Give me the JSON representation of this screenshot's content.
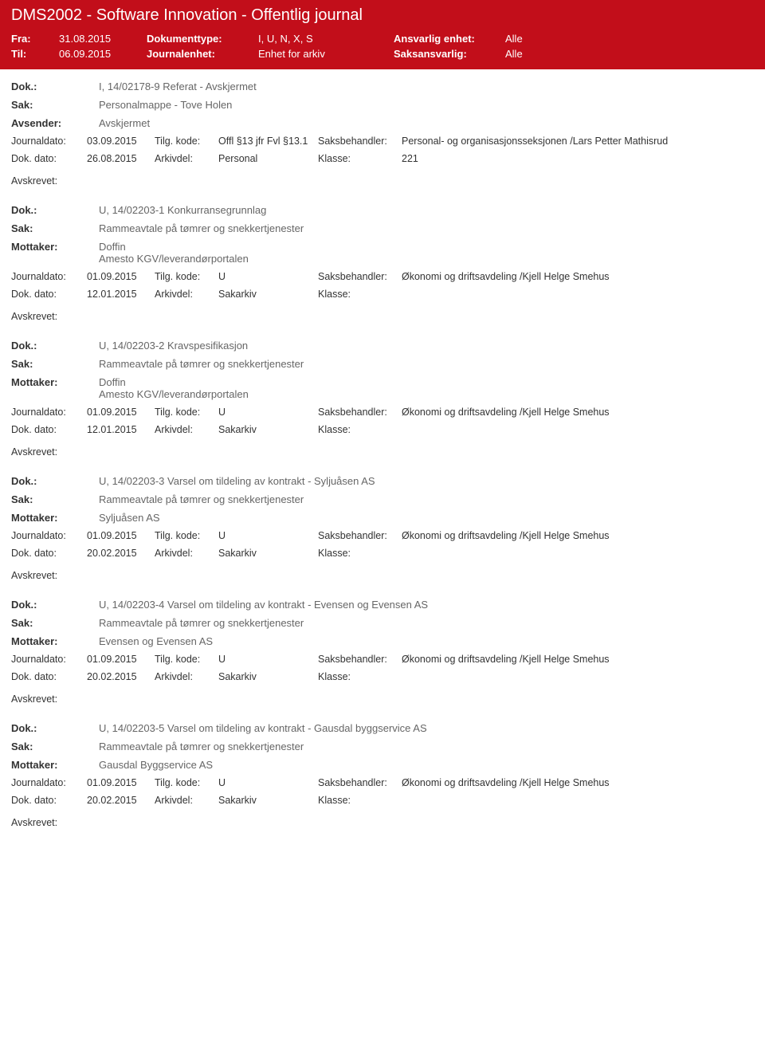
{
  "header": {
    "title": "DMS2002 - Software Innovation - Offentlig journal",
    "fra_label": "Fra:",
    "fra_value": "31.08.2015",
    "til_label": "Til:",
    "til_value": "06.09.2015",
    "doktype_label": "Dokumenttype:",
    "doktype_value": "I, U, N, X, S",
    "journalenhet_label": "Journalenhet:",
    "journalenhet_value": "Enhet for arkiv",
    "ansvarlig_label": "Ansvarlig enhet:",
    "ansvarlig_value": "Alle",
    "saksansvarlig_label": "Saksansvarlig:",
    "saksansvarlig_value": "Alle"
  },
  "labels": {
    "dok": "Dok.:",
    "sak": "Sak:",
    "avsender": "Avsender:",
    "mottaker": "Mottaker:",
    "journaldato": "Journaldato:",
    "tilgkode": "Tilg. kode:",
    "saksbehandler": "Saksbehandler:",
    "dokdato": "Dok. dato:",
    "arkivdel": "Arkivdel:",
    "klasse": "Klasse:",
    "avskrevet": "Avskrevet:"
  },
  "entries": [
    {
      "dok": "I, 14/02178-9 Referat - Avskjermet",
      "sak": "Personalmappe - Tove Holen",
      "party_label": "Avsender:",
      "party_values": [
        "Avskjermet"
      ],
      "journaldato": "03.09.2015",
      "tilgkode": "Offl §13 jfr Fvl §13.1",
      "saksbehandler": "Personal- og organisasjonsseksjonen /Lars Petter Mathisrud",
      "dokdato": "26.08.2015",
      "arkivdel": "Personal",
      "klasse": "221"
    },
    {
      "dok": "U, 14/02203-1 Konkurransegrunnlag",
      "sak": "Rammeavtale på tømrer og snekkertjenester",
      "party_label": "Mottaker:",
      "party_values": [
        "Doffin",
        "Amesto KGV/leverandørportalen"
      ],
      "journaldato": "01.09.2015",
      "tilgkode": "U",
      "saksbehandler": "Økonomi og driftsavdeling /Kjell Helge Smehus",
      "dokdato": "12.01.2015",
      "arkivdel": "Sakarkiv",
      "klasse": ""
    },
    {
      "dok": "U, 14/02203-2 Kravspesifikasjon",
      "sak": "Rammeavtale på tømrer og snekkertjenester",
      "party_label": "Mottaker:",
      "party_values": [
        "Doffin",
        "Amesto KGV/leverandørportalen"
      ],
      "journaldato": "01.09.2015",
      "tilgkode": "U",
      "saksbehandler": "Økonomi og driftsavdeling /Kjell Helge Smehus",
      "dokdato": "12.01.2015",
      "arkivdel": "Sakarkiv",
      "klasse": ""
    },
    {
      "dok": "U, 14/02203-3 Varsel om tildeling av kontrakt  - Syljuåsen AS",
      "sak": "Rammeavtale på tømrer og snekkertjenester",
      "party_label": "Mottaker:",
      "party_values": [
        "Syljuåsen AS"
      ],
      "journaldato": "01.09.2015",
      "tilgkode": "U",
      "saksbehandler": "Økonomi og driftsavdeling /Kjell Helge Smehus",
      "dokdato": "20.02.2015",
      "arkivdel": "Sakarkiv",
      "klasse": ""
    },
    {
      "dok": "U, 14/02203-4 Varsel om tildeling av kontrakt - Evensen og Evensen AS",
      "sak": "Rammeavtale på tømrer og snekkertjenester",
      "party_label": "Mottaker:",
      "party_values": [
        "Evensen og Evensen AS"
      ],
      "journaldato": "01.09.2015",
      "tilgkode": "U",
      "saksbehandler": "Økonomi og driftsavdeling /Kjell Helge Smehus",
      "dokdato": "20.02.2015",
      "arkivdel": "Sakarkiv",
      "klasse": ""
    },
    {
      "dok": "U, 14/02203-5 Varsel om tildeling av kontrakt - Gausdal byggservice AS",
      "sak": "Rammeavtale på tømrer og snekkertjenester",
      "party_label": "Mottaker:",
      "party_values": [
        "Gausdal Byggservice AS"
      ],
      "journaldato": "01.09.2015",
      "tilgkode": "U",
      "saksbehandler": "Økonomi og driftsavdeling /Kjell Helge Smehus",
      "dokdato": "20.02.2015",
      "arkivdel": "Sakarkiv",
      "klasse": ""
    }
  ]
}
